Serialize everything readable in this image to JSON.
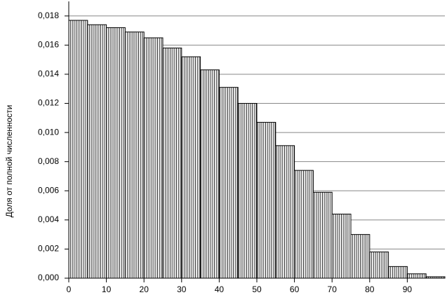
{
  "chart_data": {
    "type": "histogram",
    "ylabel": "Доля от полной численности",
    "bins": [
      0,
      5,
      10,
      15,
      20,
      25,
      30,
      35,
      40,
      45,
      50,
      55,
      60,
      65,
      70,
      75,
      80,
      85,
      90,
      95,
      100
    ],
    "values": [
      0.0177,
      0.0174,
      0.0172,
      0.0169,
      0.0165,
      0.0158,
      0.0152,
      0.0143,
      0.0131,
      0.012,
      0.0107,
      0.0091,
      0.0074,
      0.0059,
      0.0044,
      0.003,
      0.0018,
      0.0008,
      0.0003,
      0.0001
    ],
    "color": "#000000",
    "xlim": [
      0,
      100
    ],
    "ylim": [
      0,
      0.019
    ],
    "xticks": [
      0,
      10,
      20,
      30,
      40,
      50,
      60,
      70,
      80,
      90
    ],
    "yticks": [
      {
        "value": 0,
        "label": "0,000"
      },
      {
        "value": 0.002,
        "label": "0,002"
      },
      {
        "value": 0.004,
        "label": "0,004"
      },
      {
        "value": 0.006,
        "label": "0,006"
      },
      {
        "value": 0.008,
        "label": "0,008"
      },
      {
        "value": 0.01,
        "label": "0,010"
      },
      {
        "value": 0.012,
        "label": "0,012"
      },
      {
        "value": 0.014,
        "label": "0,014"
      },
      {
        "value": 0.016,
        "label": "0,016"
      },
      {
        "value": 0.018,
        "label": "0,018"
      }
    ],
    "grid": true
  }
}
